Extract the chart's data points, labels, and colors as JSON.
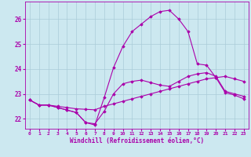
{
  "xlabel": "Windchill (Refroidissement éolien,°C)",
  "xlim": [
    -0.5,
    23.5
  ],
  "ylim": [
    21.6,
    26.7
  ],
  "xticks": [
    0,
    1,
    2,
    3,
    4,
    5,
    6,
    7,
    8,
    9,
    10,
    11,
    12,
    13,
    14,
    15,
    16,
    17,
    18,
    19,
    20,
    21,
    22,
    23
  ],
  "yticks": [
    22,
    23,
    24,
    25,
    26
  ],
  "background_color": "#cce8f0",
  "grid_color": "#aaccd8",
  "line_color": "#aa00aa",
  "line1": [
    22.75,
    22.55,
    22.55,
    22.5,
    22.45,
    22.4,
    22.38,
    22.36,
    22.5,
    22.6,
    22.7,
    22.8,
    22.9,
    23.0,
    23.1,
    23.2,
    23.3,
    23.4,
    23.5,
    23.6,
    23.65,
    23.7,
    23.6,
    23.5
  ],
  "line2": [
    22.75,
    22.55,
    22.55,
    22.45,
    22.35,
    22.25,
    21.85,
    21.8,
    22.3,
    23.0,
    23.4,
    23.5,
    23.55,
    23.45,
    23.35,
    23.3,
    23.5,
    23.7,
    23.8,
    23.85,
    23.7,
    23.1,
    23.0,
    22.9
  ],
  "line3": [
    22.75,
    22.55,
    22.55,
    22.45,
    22.35,
    22.25,
    21.85,
    21.75,
    22.85,
    24.05,
    24.9,
    25.5,
    25.8,
    26.1,
    26.3,
    26.35,
    26.0,
    25.5,
    24.2,
    24.15,
    23.65,
    23.05,
    22.95,
    22.8
  ]
}
